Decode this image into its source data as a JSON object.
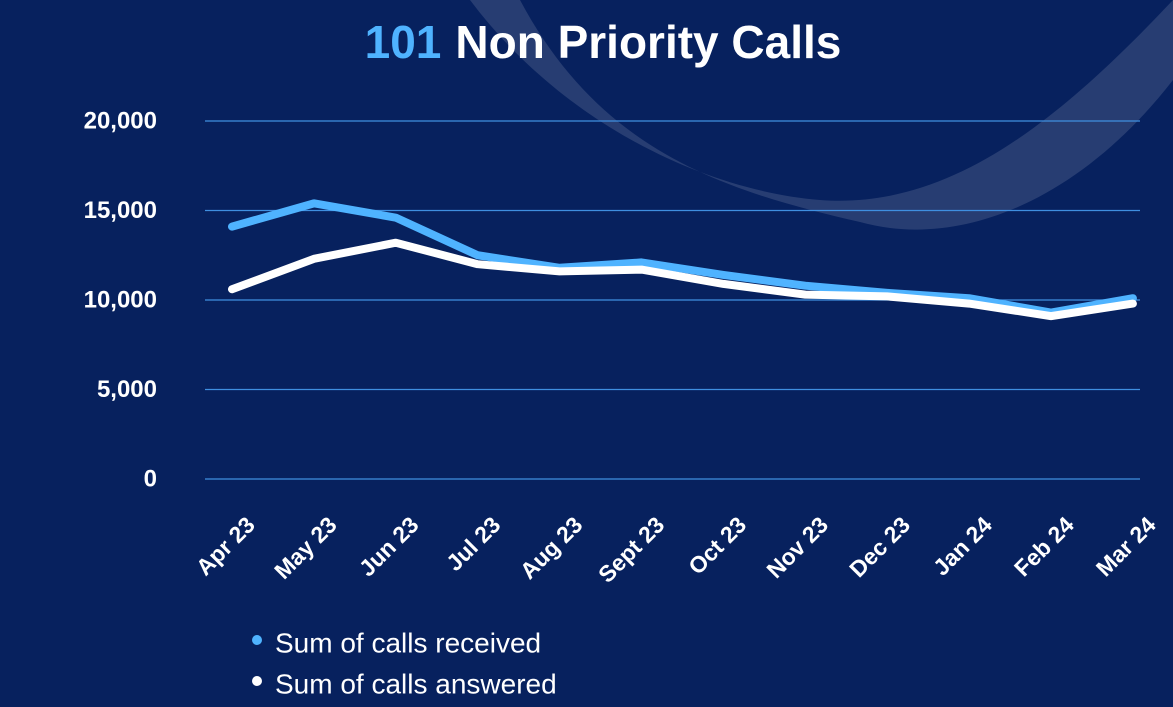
{
  "chart_data": {
    "type": "line",
    "title": [
      "101",
      "Non Priority Calls"
    ],
    "categories": [
      "Apr 23",
      "May 23",
      "Jun 23",
      "Jul 23",
      "Aug 23",
      "Sept 23",
      "Oct 23",
      "Nov 23",
      "Dec 23",
      "Jan 24",
      "Feb 24",
      "Mar 24"
    ],
    "series": [
      {
        "name": "Sum of calls received",
        "color": "#4fb3ff",
        "values": [
          14100,
          15400,
          14600,
          12500,
          11800,
          12100,
          11400,
          10800,
          10400,
          10100,
          9300,
          10100
        ]
      },
      {
        "name": "Sum of calls answered",
        "color": "#ffffff",
        "values": [
          10600,
          12300,
          13200,
          12000,
          11600,
          11700,
          10900,
          10300,
          10200,
          9800,
          9100,
          9800
        ]
      }
    ],
    "ylim": [
      0,
      20000
    ],
    "yticks": [
      0,
      {
        "value": 5000,
        "label": "5,000"
      },
      {
        "value": 10000,
        "label": "10,000"
      },
      {
        "value": 15000,
        "label": "15,000"
      },
      {
        "value": 20000,
        "label": "20,000"
      }
    ],
    "grid": true,
    "grid_color": "#3f8fe0",
    "legend": "bottom"
  }
}
